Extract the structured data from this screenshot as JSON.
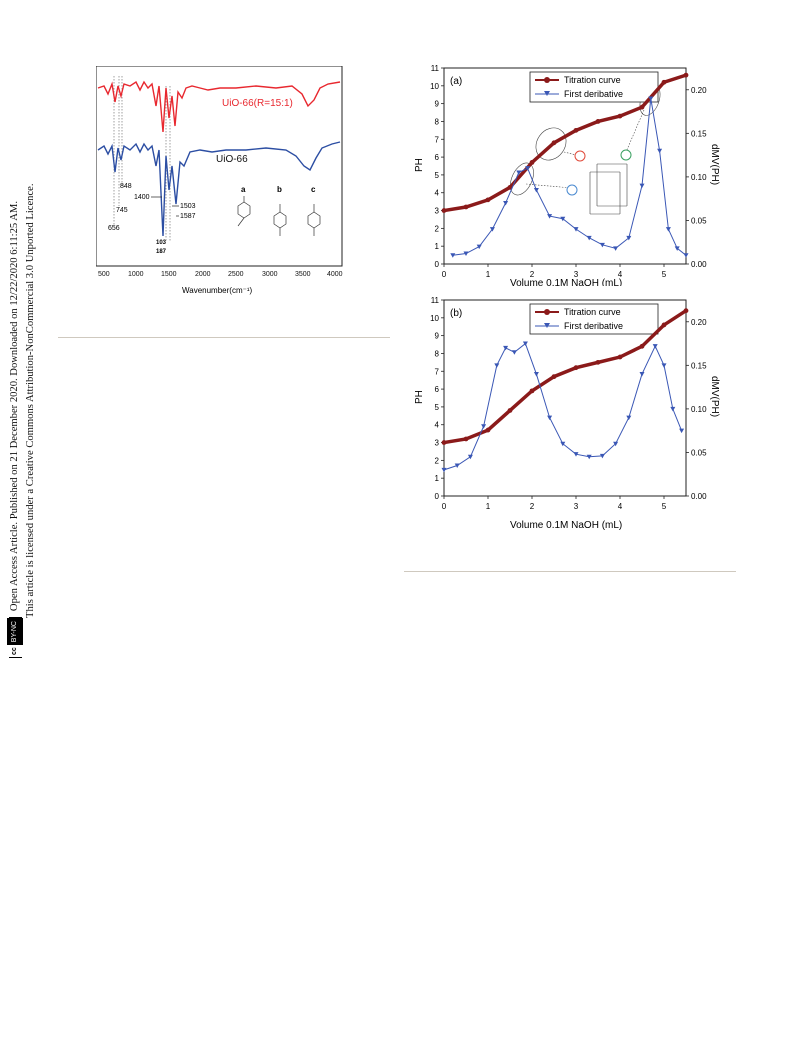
{
  "side_notice": {
    "line1": "Open Access Article. Published on 21 December 2020. Downloaded on 12/22/2020 6:11:25 AM.",
    "line2": "This article is licensed under a Creative Commons Attribution-NonCommercial 3.0 Unported Licence.",
    "badge_cc": "cc",
    "badge_by": "BY-NC"
  },
  "ftir": {
    "xlabel": "Wavenumber(cm⁻¹)",
    "ticks": [
      "500",
      "1000",
      "1500",
      "2000",
      "2500",
      "3000",
      "3500",
      "4000"
    ],
    "label_top": "UiO-66(R=15:1)",
    "label_bottom": "UiO-66",
    "annotations": [
      "848",
      "745",
      "656",
      "1400",
      "1503",
      "1587",
      "103",
      "187"
    ],
    "structure_labels": [
      "a",
      "b",
      "c"
    ],
    "colors": {
      "top": "#e8282f",
      "bottom": "#2c4ea3"
    }
  },
  "chart_data": [
    {
      "type": "line",
      "panel": "(a)",
      "xlabel": "Volume 0.1M NaOH (mL)",
      "ylabel": "PH",
      "y2label": "dMV(PH)",
      "xlim": [
        0,
        5.5
      ],
      "ylim": [
        0,
        11
      ],
      "y2lim": [
        0,
        0.225
      ],
      "xticks": [
        "0",
        "1",
        "2",
        "3",
        "4",
        "5"
      ],
      "yticks": [
        "0",
        "1",
        "2",
        "3",
        "4",
        "5",
        "6",
        "7",
        "8",
        "9",
        "10",
        "11"
      ],
      "y2ticks": [
        "0.00",
        "0.05",
        "0.10",
        "0.15",
        "0.20"
      ],
      "legend": [
        "Titration curve",
        "First deribative"
      ],
      "series": [
        {
          "name": "Titration curve",
          "axis": "left",
          "color": "#8b1a1a",
          "x": [
            0,
            0.5,
            1,
            1.5,
            2,
            2.5,
            3,
            3.5,
            4,
            4.5,
            5,
            5.5
          ],
          "y": [
            3.0,
            3.2,
            3.6,
            4.3,
            5.7,
            6.8,
            7.5,
            8.0,
            8.3,
            8.8,
            10.2,
            10.6
          ]
        },
        {
          "name": "First deribative",
          "axis": "right",
          "color": "#3a57b5",
          "x": [
            0.2,
            0.5,
            0.8,
            1.1,
            1.4,
            1.7,
            1.9,
            2.1,
            2.4,
            2.7,
            3.0,
            3.3,
            3.6,
            3.9,
            4.2,
            4.5,
            4.7,
            4.9,
            5.1,
            5.3,
            5.5
          ],
          "y": [
            0.01,
            0.012,
            0.02,
            0.04,
            0.07,
            0.105,
            0.11,
            0.085,
            0.055,
            0.052,
            0.04,
            0.03,
            0.022,
            0.018,
            0.03,
            0.09,
            0.19,
            0.13,
            0.04,
            0.018,
            0.01
          ]
        }
      ]
    },
    {
      "type": "line",
      "panel": "(b)",
      "xlabel": "Volume 0.1M NaOH (mL)",
      "ylabel": "PH",
      "y2label": "dMV(PH)",
      "xlim": [
        0,
        5.5
      ],
      "ylim": [
        0,
        11
      ],
      "y2lim": [
        0,
        0.225
      ],
      "xticks": [
        "0",
        "1",
        "2",
        "3",
        "4",
        "5"
      ],
      "yticks": [
        "0",
        "1",
        "2",
        "3",
        "4",
        "5",
        "6",
        "7",
        "8",
        "9",
        "10",
        "11"
      ],
      "y2ticks": [
        "0.00",
        "0.05",
        "0.10",
        "0.15",
        "0.20"
      ],
      "legend": [
        "Titration curve",
        "First deribative"
      ],
      "series": [
        {
          "name": "Titration curve",
          "axis": "left",
          "color": "#8b1a1a",
          "x": [
            0,
            0.5,
            1,
            1.5,
            2,
            2.5,
            3,
            3.5,
            4,
            4.5,
            5,
            5.5
          ],
          "y": [
            3.0,
            3.2,
            3.7,
            4.8,
            5.9,
            6.7,
            7.2,
            7.5,
            7.8,
            8.4,
            9.6,
            10.4
          ]
        },
        {
          "name": "First deribative",
          "axis": "right",
          "color": "#3a57b5",
          "x": [
            0,
            0.3,
            0.6,
            0.9,
            1.2,
            1.4,
            1.6,
            1.85,
            2.1,
            2.4,
            2.7,
            3.0,
            3.3,
            3.6,
            3.9,
            4.2,
            4.5,
            4.8,
            5.0,
            5.2,
            5.4
          ],
          "y": [
            0.03,
            0.035,
            0.045,
            0.08,
            0.15,
            0.17,
            0.165,
            0.175,
            0.14,
            0.09,
            0.06,
            0.048,
            0.045,
            0.046,
            0.06,
            0.09,
            0.14,
            0.172,
            0.15,
            0.1,
            0.075
          ]
        }
      ]
    }
  ]
}
